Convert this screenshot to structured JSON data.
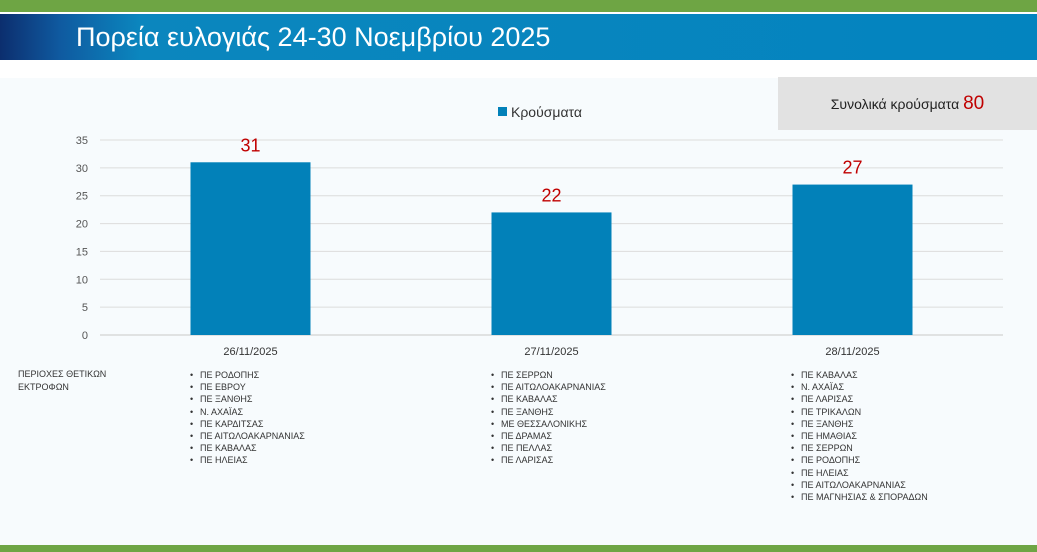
{
  "title": "Πορεία ευλογιάς 24-30 Νοεμβρίου 2025",
  "total": {
    "label": "Συνολικά κρούσματα",
    "value": "80"
  },
  "colors": {
    "bar": "#0281b9",
    "data_label": "#c00000",
    "accent_green": "#6ea544",
    "title_blue": "#0384bf"
  },
  "chart_data": {
    "type": "bar",
    "categories": [
      "26/11/2025",
      "27/11/2025",
      "28/11/2025"
    ],
    "series": [
      {
        "name": "Κρούσματα",
        "values": [
          31,
          22,
          27
        ]
      }
    ],
    "data_labels": [
      "31",
      "22",
      "27"
    ],
    "ylim": [
      0,
      35
    ],
    "yticks": [
      "0",
      "5",
      "10",
      "15",
      "20",
      "25",
      "30",
      "35"
    ],
    "legend_position": "top-center",
    "grid": true
  },
  "regions": {
    "label": "ΠΕΡΙΟΧΕΣ ΘΕΤΙΚΩΝ\nΕΚΤΡΟΦΩΝ",
    "lists": [
      [
        "ΠΕ ΡΟΔΟΠΗΣ",
        "ΠΕ ΕΒΡΟΥ",
        "ΠΕ ΞΑΝΘΗΣ",
        "Ν. ΑΧΑΪΑΣ",
        "ΠΕ ΚΑΡΔΙΤΣΑΣ",
        "ΠΕ ΑΙΤΩΛΟΑΚΑΡΝΑΝΙΑΣ",
        "ΠΕ ΚΑΒΑΛΑΣ",
        "ΠΕ ΗΛΕΙΑΣ"
      ],
      [
        "ΠΕ ΣΕΡΡΩΝ",
        "ΠΕ ΑΙΤΩΛΟΑΚΑΡΝΑΝΙΑΣ",
        "ΠΕ ΚΑΒΑΛΑΣ",
        "ΠΕ ΞΑΝΘΗΣ",
        "ΜΕ ΘΕΣΣΑΛΟΝΙΚΗΣ",
        "ΠΕ ΔΡΑΜΑΣ",
        "ΠΕ ΠΕΛΛΑΣ",
        "ΠΕ ΛΑΡΙΣΑΣ"
      ],
      [
        "ΠΕ ΚΑΒΑΛΑΣ",
        "Ν. ΑΧΑΪΑΣ",
        "ΠΕ ΛΑΡΙΣΑΣ",
        "ΠΕ ΤΡΙΚΑΛΩΝ",
        "ΠΕ ΞΑΝΘΗΣ",
        "ΠΕ ΗΜΑΘΙΑΣ",
        "ΠΕ ΣΕΡΡΩΝ",
        "ΠΕ ΡΟΔΟΠΗΣ",
        "ΠΕ ΗΛΕΙΑΣ",
        "ΠΕ ΑΙΤΩΛΟΑΚΑΡΝΑΝΙΑΣ",
        "ΠΕ ΜΑΓΝΗΣΙΑΣ & ΣΠΟΡΑΔΩΝ"
      ]
    ]
  }
}
